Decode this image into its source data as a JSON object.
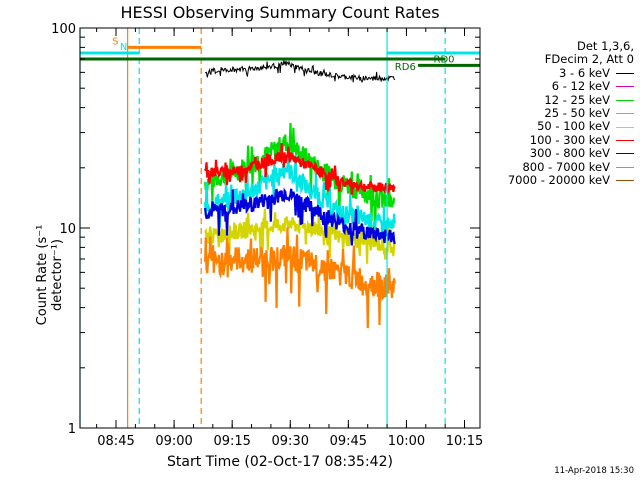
{
  "chart_data": {
    "type": "line",
    "title": "HESSI Observing Summary Count Rates",
    "xlabel": "Start Time (02-Oct-17 08:35:42)",
    "ylabel": "Count Rate (s⁻¹ detector⁻¹)",
    "yscale": "log",
    "ylim": [
      1,
      100
    ],
    "xlim": [
      "08:35:42",
      "10:19:00"
    ],
    "x_ticks": [
      "08:45",
      "09:00",
      "09:15",
      "09:30",
      "09:45",
      "10:00",
      "10:15"
    ],
    "y_ticks": [
      "1",
      "10",
      "100"
    ],
    "legend_header": [
      "Det 1,3,6,",
      "FDecim 2, Att 0"
    ],
    "grid": false,
    "series": [
      {
        "name": "3 - 6 keV",
        "color": "#000000",
        "x": [
          "09:08",
          "09:15",
          "09:22",
          "09:29",
          "09:36",
          "09:43",
          "09:50",
          "09:57"
        ],
        "values": [
          60,
          62,
          63,
          66,
          60,
          57,
          56,
          56
        ]
      },
      {
        "name": "6 - 12 keV",
        "color": "#d000d0",
        "x": [],
        "values": []
      },
      {
        "name": "12 - 25 keV",
        "color": "#00dd00",
        "x": [
          "09:08",
          "09:15",
          "09:22",
          "09:29",
          "09:36",
          "09:43",
          "09:50",
          "09:57"
        ],
        "values": [
          17,
          19,
          22,
          27,
          21,
          17,
          15,
          13
        ]
      },
      {
        "name": "25 - 50 keV",
        "color": "#00e5e5",
        "x": [
          "09:08",
          "09:15",
          "09:22",
          "09:29",
          "09:36",
          "09:43",
          "09:50",
          "09:57"
        ],
        "values": [
          13,
          14,
          16,
          20,
          15,
          12,
          11,
          10
        ]
      },
      {
        "name": "50 - 100 keV",
        "color": "#d4d400",
        "x": [
          "09:08",
          "09:15",
          "09:22",
          "09:29",
          "09:36",
          "09:43",
          "09:50",
          "09:57"
        ],
        "values": [
          9,
          9.5,
          10,
          10.5,
          10,
          9,
          8.5,
          8
        ]
      },
      {
        "name": "100 - 300 keV",
        "color": "#ff0000",
        "x": [
          "09:08",
          "09:15",
          "09:22",
          "09:29",
          "09:36",
          "09:43",
          "09:50",
          "09:57"
        ],
        "values": [
          19,
          19,
          21,
          23,
          20,
          17,
          16,
          16
        ]
      },
      {
        "name": "300 - 800 keV",
        "color": "#0000dd",
        "x": [
          "09:08",
          "09:15",
          "09:22",
          "09:29",
          "09:36",
          "09:43",
          "09:50",
          "09:57"
        ],
        "values": [
          12,
          12.5,
          13.5,
          15,
          12.5,
          10.5,
          9.5,
          9
        ]
      },
      {
        "name": "800 - 7000 keV",
        "color": "#ff8000",
        "x": [
          "09:08",
          "09:15",
          "09:22",
          "09:29",
          "09:36",
          "09:43",
          "09:50",
          "09:57"
        ],
        "values": [
          6.5,
          7,
          7,
          7.2,
          6.6,
          6,
          5.4,
          5
        ]
      },
      {
        "name": "7000 - 20000 keV",
        "color": "#a05000",
        "x": [],
        "values": []
      }
    ],
    "annotations": [
      {
        "text": "S",
        "color": "#ff8000",
        "x_start": "08:48",
        "x_end": "09:07",
        "y": 80
      },
      {
        "text": "N",
        "color": "#00e5e5",
        "x_start": "08:35:42",
        "x_end": "08:51",
        "y": 75
      },
      {
        "text": "RD6",
        "color": "#006600",
        "x_start": "08:35:42",
        "x_end": "10:10",
        "y": 70
      },
      {
        "text": "RD0",
        "color": "#006600",
        "x_start": "10:03",
        "x_end": "10:19",
        "y": 65
      },
      {
        "text": "",
        "color": "#00e5e5",
        "x_start": "09:55",
        "x_end": "10:19",
        "y": 75
      }
    ],
    "vlines": [
      {
        "x": "08:35:42",
        "color": "#00e5e5",
        "style": "solid"
      },
      {
        "x": "08:48",
        "color": "#ff8000",
        "style": "solid"
      },
      {
        "x": "08:51",
        "color": "#00e5e5",
        "style": "dashed"
      },
      {
        "x": "09:07",
        "color": "#ff8000",
        "style": "dashed"
      },
      {
        "x": "09:55",
        "color": "#00e5e5",
        "style": "solid"
      },
      {
        "x": "10:10",
        "color": "#00e5e5",
        "style": "dashed"
      }
    ]
  },
  "footer_stamp": "11-Apr-2018 15:30"
}
